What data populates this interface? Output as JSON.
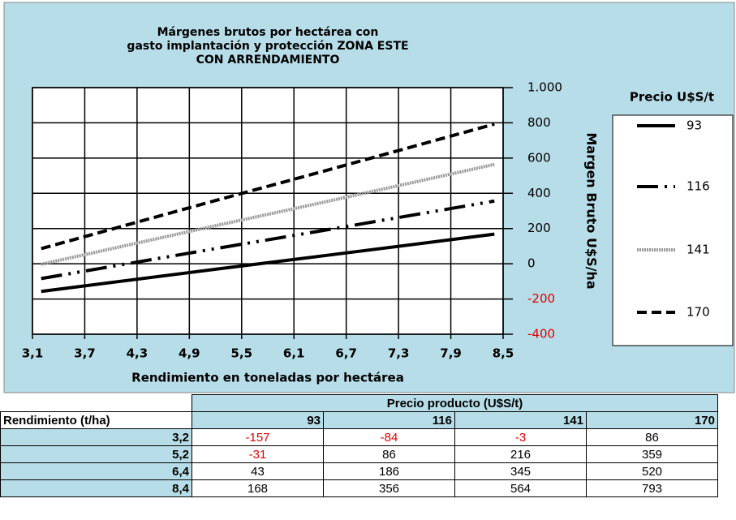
{
  "chart_data": {
    "type": "line",
    "title": [
      "Márgenes brutos por hectárea con",
      "gasto implantación y protección ZONA ESTE",
      "CON ARRENDAMIENTO"
    ],
    "x_label": "Rendimiento en toneladas por hectárea",
    "y_label": "Margen Bruto U$S/ha",
    "legend_title": "Precio U$S/t",
    "x": [
      3.2,
      5.2,
      6.4,
      8.4
    ],
    "series": [
      {
        "name": "93",
        "color": "#000000",
        "values": [
          -157,
          -31,
          43,
          168
        ]
      },
      {
        "name": "116",
        "color": "#000000",
        "values": [
          -84,
          86,
          186,
          356
        ]
      },
      {
        "name": "141",
        "color": "#999999",
        "values": [
          -3,
          216,
          345,
          564
        ]
      },
      {
        "name": "170",
        "color": "#000000",
        "values": [
          86,
          359,
          520,
          793
        ]
      }
    ],
    "xlim": [
      3.1,
      8.5
    ],
    "xticks": [
      {
        "value": 3.1,
        "label": "3,1"
      },
      {
        "value": 3.7,
        "label": "3,7"
      },
      {
        "value": 4.3,
        "label": "4,3"
      },
      {
        "value": 4.9,
        "label": "4,9"
      },
      {
        "value": 5.5,
        "label": "5,5"
      },
      {
        "value": 6.1,
        "label": "6,1"
      },
      {
        "value": 6.7,
        "label": "6,7"
      },
      {
        "value": 7.3,
        "label": "7,3"
      },
      {
        "value": 7.9,
        "label": "7,9"
      },
      {
        "value": 8.5,
        "label": "8,5"
      }
    ],
    "ylim": [
      -400,
      1000
    ],
    "yticks": [
      -400,
      -200,
      0,
      200,
      400,
      600,
      800,
      {
        "value": 1000,
        "label": "1.000"
      }
    ],
    "grid": true
  },
  "table": {
    "title": "Precio producto (U$S/t)",
    "columns": [
      "Rendimiento (t/ha)",
      "93",
      "116",
      "141",
      "170"
    ],
    "rows": [
      [
        "3,2",
        -157,
        -84,
        -3,
        86
      ],
      [
        "5,2",
        -31,
        86,
        216,
        359
      ],
      [
        "6,4",
        43,
        186,
        345,
        520
      ],
      [
        "8,4",
        168,
        356,
        564,
        793
      ]
    ]
  }
}
